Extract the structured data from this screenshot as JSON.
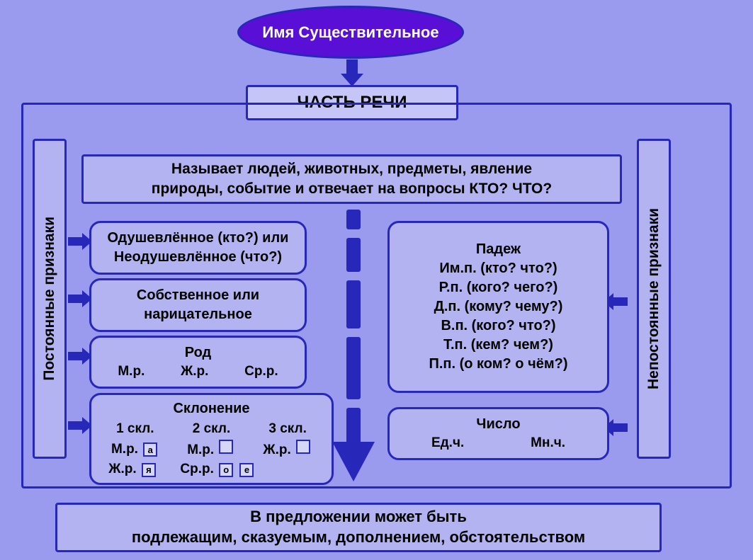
{
  "colors": {
    "background": "#9a9aef",
    "box_fill": "#b3b3f2",
    "box_fill_light": "#c5c5f7",
    "border": "#2727ba",
    "ellipse_fill": "#5a0fd6",
    "ellipse_text": "#ffffff",
    "text": "#000000"
  },
  "title": "Имя Существительное",
  "part_of_speech": "ЧАСТЬ РЕЧИ",
  "definition_line1": "Называет людей, животных, предметы, явление",
  "definition_line2": "природы, событие и отвечает на вопросы КТО? ЧТО?",
  "side_left": "Постоянные признаки",
  "side_right": "Непостоянные признаки",
  "permanent": {
    "animacy_l1": "Одушевлённое (кто?) или",
    "animacy_l2": "Неодушевлённое (что?)",
    "proper_l1": "Собственное или",
    "proper_l2": "нарицательное",
    "gender_title": "Род",
    "gender_m": "М.р.",
    "gender_f": "Ж.р.",
    "gender_n": "Ср.р.",
    "decl_title": "Склонение",
    "decl_1": "1 скл.",
    "decl_2": "2 скл.",
    "decl_3": "3 скл.",
    "decl_r2_a": "М.р.",
    "decl_r2_a_end": "а",
    "decl_r2_b": "М.р.",
    "decl_r2_c": "Ж.р.",
    "decl_r3_a": "Ж.р.",
    "decl_r3_a_end": "я",
    "decl_r3_b": "Ср.р.",
    "decl_r3_b_end1": "о",
    "decl_r3_b_end2": "е"
  },
  "nonpermanent": {
    "case_title": "Падеж",
    "case_im": "Им.п. (кто? что?)",
    "case_r": "Р.п. (кого? чего?)",
    "case_d": "Д.п. (кому? чему?)",
    "case_v": "В.п. (кого? что?)",
    "case_t": "Т.п. (кем? чем?)",
    "case_p": "П.п. (о ком? о чём?)",
    "number_title": "Число",
    "number_sg": "Ед.ч.",
    "number_pl": "Мн.ч."
  },
  "bottom_l1": "В предложении может быть",
  "bottom_l2": "подлежащим, сказуемым, дополнением, обстоятельством"
}
